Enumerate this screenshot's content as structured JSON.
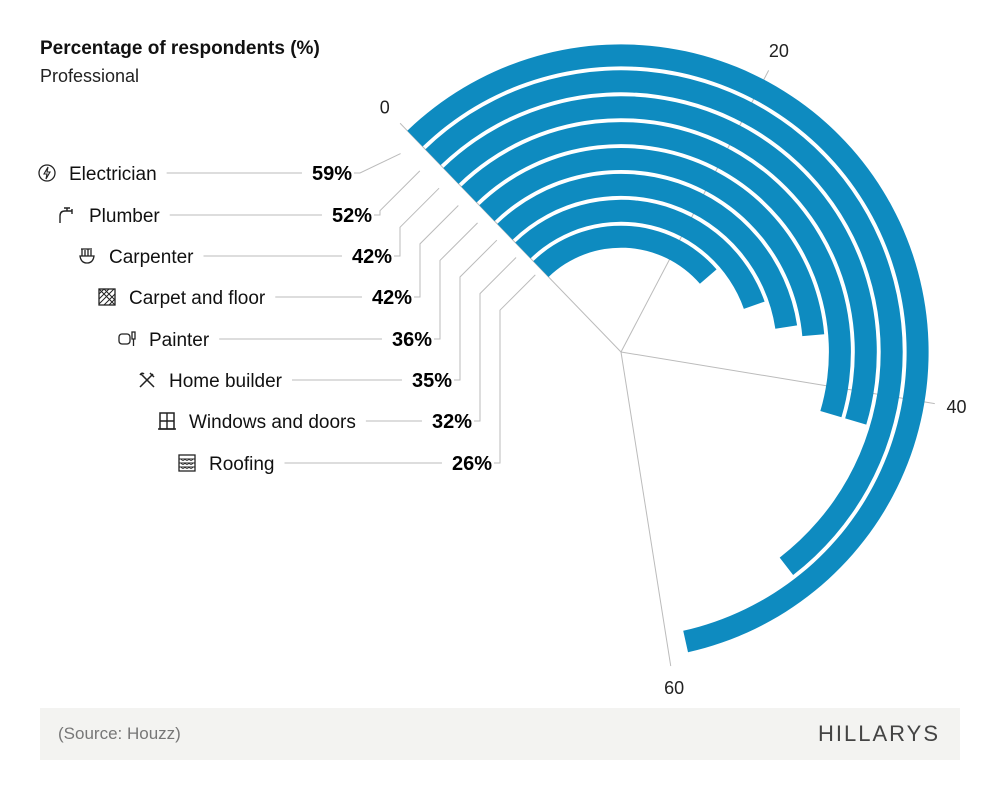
{
  "chart_data": {
    "type": "radial-bar",
    "title": "Percentage of respondents (%)",
    "subtitle": "Professional",
    "axis_ticks": [
      0,
      20,
      40,
      60
    ],
    "axis_range": [
      0,
      60
    ],
    "categories": [
      "Electrician",
      "Plumber",
      "Carpenter",
      "Carpet and floor",
      "Painter",
      "Home builder",
      "Windows and doors",
      "Roofing"
    ],
    "values": [
      59,
      52,
      42,
      42,
      36,
      35,
      32,
      26
    ],
    "value_labels": [
      "59%",
      "52%",
      "42%",
      "42%",
      "36%",
      "35%",
      "32%",
      "26%"
    ],
    "icons": [
      "lightning-icon",
      "tap-icon",
      "tool-bucket-icon",
      "floor-pattern-icon",
      "paint-icon",
      "tools-icon",
      "window-icon",
      "roof-tiles-icon"
    ],
    "bar_color": "#0e8bc0"
  },
  "footer": {
    "source": "(Source: Houzz)",
    "logo": "HILLARYS"
  }
}
